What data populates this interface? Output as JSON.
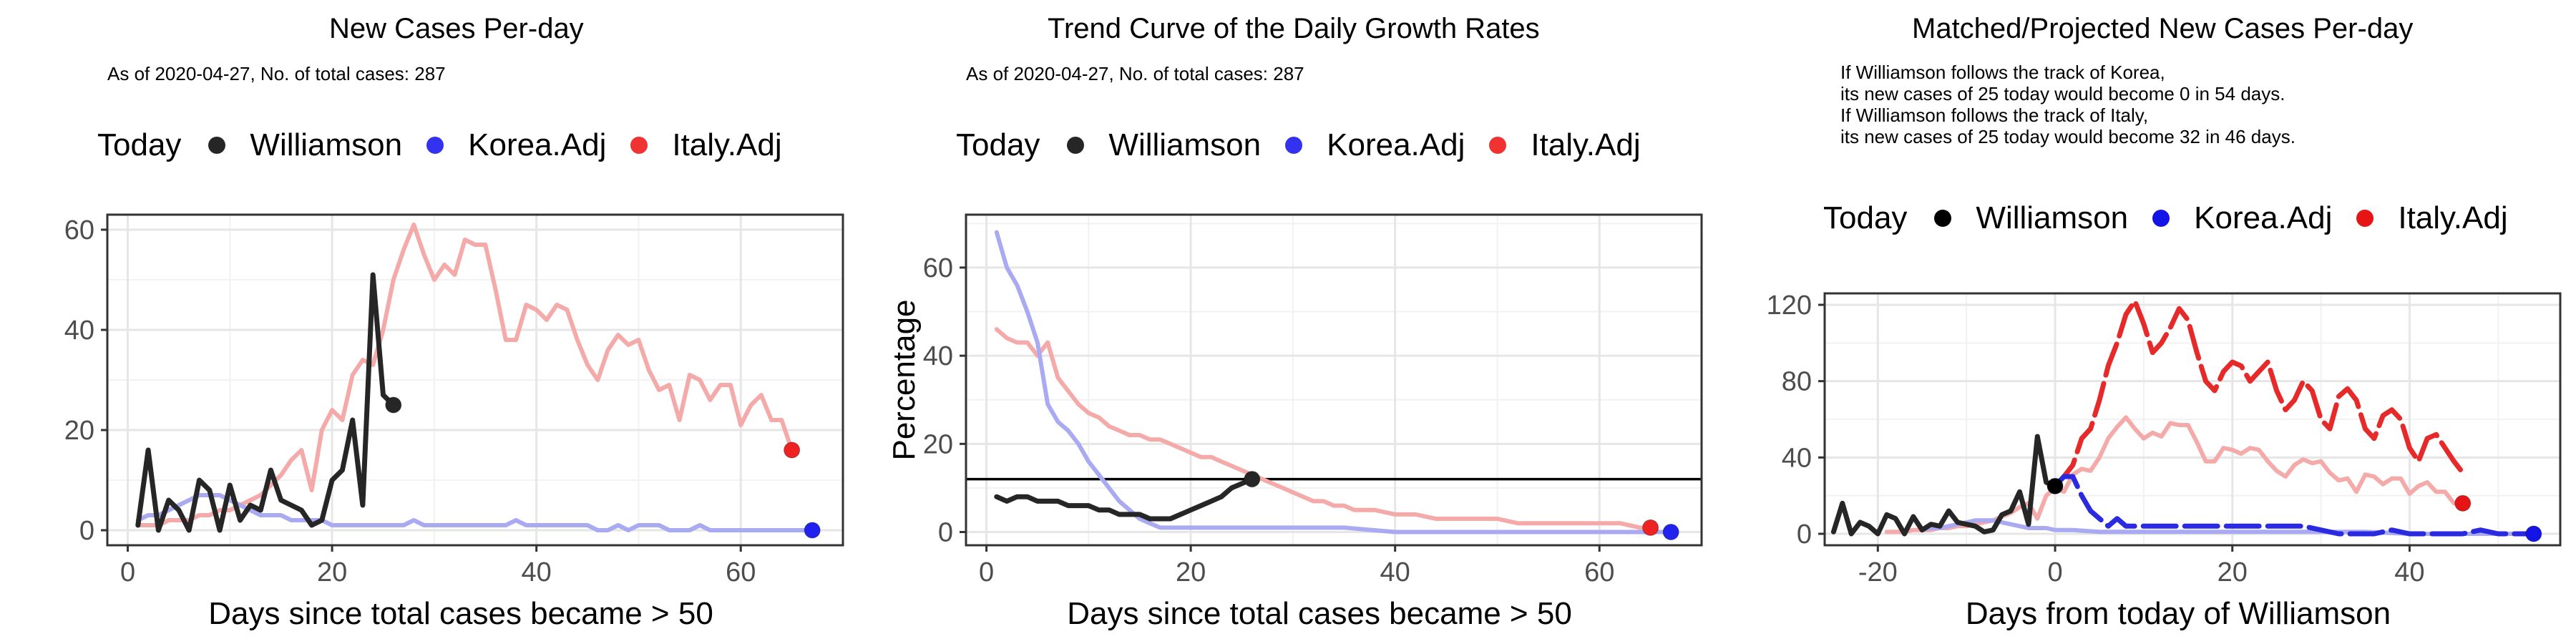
{
  "colors": {
    "today": "#000000",
    "williamson_line": "#262626",
    "korea_point": "#2222ee",
    "italy_point": "#ee2222",
    "korea_faded": "#aaaaf2",
    "italy_faded": "#f5aaaa",
    "korea_proj": "#2a2ae0",
    "italy_proj": "#e62a2a"
  },
  "legend": {
    "title": "Today",
    "items": [
      {
        "label": "Williamson",
        "color": "#262626"
      },
      {
        "label": "Korea.Adj",
        "color": "#3232f0"
      },
      {
        "label": "Italy.Adj",
        "color": "#f03232"
      }
    ]
  },
  "legend3": {
    "title": "Today",
    "items": [
      {
        "label": "Williamson",
        "color": "#000000"
      },
      {
        "label": "Korea.Adj",
        "color": "#1414e6"
      },
      {
        "label": "Italy.Adj",
        "color": "#e61414"
      }
    ]
  },
  "panel1": {
    "title": "New Cases Per-day",
    "subtitle": "As of 2020-04-27, No. of total cases: 287"
  },
  "panel2": {
    "title": "Trend Curve of the Daily Growth Rates",
    "subtitle": "As of 2020-04-27, No. of total cases: 287"
  },
  "panel3": {
    "title": "Matched/Projected New Cases Per-day",
    "subtitle_lines": [
      "If Williamson follows the track of Korea,",
      "its new cases of 25 today would become 0 in 54 days.",
      "If Williamson follows the track of Italy,",
      "its new cases of 25 today would become 32 in 46 days."
    ]
  },
  "chart_data": [
    {
      "type": "line",
      "title": "New Cases Per-day",
      "xlabel": "Days since total cases became > 50",
      "ylabel": "",
      "xlim": [
        -2,
        70
      ],
      "ylim": [
        -3,
        63
      ],
      "xticks": [
        0,
        20,
        40,
        60
      ],
      "yticks": [
        0,
        20,
        40,
        60
      ],
      "grid": true,
      "legend_position": "top",
      "series": [
        {
          "name": "Italy.Adj",
          "x": [
            1,
            2,
            3,
            4,
            5,
            6,
            7,
            8,
            9,
            10,
            11,
            12,
            13,
            14,
            15,
            16,
            17,
            18,
            19,
            20,
            21,
            22,
            23,
            24,
            25,
            26,
            27,
            28,
            29,
            30,
            31,
            32,
            33,
            34,
            35,
            36,
            37,
            38,
            39,
            40,
            41,
            42,
            43,
            44,
            45,
            46,
            47,
            48,
            49,
            50,
            51,
            52,
            53,
            54,
            55,
            56,
            57,
            58,
            59,
            60,
            61,
            62,
            63,
            64,
            65
          ],
          "y": [
            1,
            1,
            1,
            2,
            2,
            2,
            3,
            3,
            4,
            4,
            5,
            6,
            7,
            9,
            11,
            14,
            16,
            8,
            20,
            24,
            22,
            31,
            34,
            33,
            40,
            50,
            56,
            61,
            55,
            50,
            53,
            51,
            58,
            57,
            57,
            48,
            38,
            38,
            45,
            44,
            42,
            45,
            44,
            38,
            33,
            30,
            36,
            39,
            37,
            38,
            32,
            28,
            29,
            22,
            31,
            30,
            26,
            29,
            29,
            21,
            25,
            27,
            22,
            22,
            16
          ]
        },
        {
          "name": "Korea.Adj",
          "x": [
            1,
            2,
            3,
            4,
            5,
            6,
            7,
            8,
            9,
            10,
            11,
            12,
            13,
            14,
            15,
            16,
            17,
            18,
            19,
            20,
            21,
            22,
            23,
            24,
            25,
            26,
            27,
            28,
            29,
            30,
            31,
            32,
            33,
            34,
            35,
            36,
            37,
            38,
            39,
            40,
            41,
            42,
            43,
            44,
            45,
            46,
            47,
            48,
            49,
            50,
            51,
            52,
            53,
            54,
            55,
            56,
            57,
            58,
            59,
            60,
            61,
            62,
            63,
            64,
            65,
            66,
            67
          ],
          "y": [
            2,
            3,
            3,
            4,
            5,
            6,
            7,
            7,
            7,
            6,
            5,
            4,
            3,
            3,
            3,
            2,
            2,
            2,
            2,
            1,
            1,
            1,
            1,
            1,
            1,
            1,
            1,
            2,
            1,
            1,
            1,
            1,
            1,
            1,
            1,
            1,
            1,
            2,
            1,
            1,
            1,
            1,
            1,
            1,
            1,
            0,
            0,
            1,
            0,
            1,
            1,
            1,
            0,
            0,
            0,
            1,
            0,
            0,
            0,
            0,
            0,
            0,
            0,
            0,
            0,
            0,
            0
          ]
        },
        {
          "name": "Williamson",
          "x": [
            1,
            2,
            3,
            4,
            5,
            6,
            7,
            8,
            9,
            10,
            11,
            12,
            13,
            14,
            15,
            16,
            17,
            18,
            19,
            20,
            21,
            22,
            23,
            24,
            25,
            26
          ],
          "y": [
            1,
            16,
            0,
            6,
            4,
            0,
            10,
            8,
            0,
            9,
            2,
            5,
            4,
            12,
            6,
            5,
            4,
            1,
            2,
            10,
            12,
            22,
            5,
            51,
            27,
            25
          ]
        }
      ],
      "today_points": [
        {
          "name": "Williamson",
          "x": 26,
          "y": 25
        },
        {
          "name": "Korea.Adj",
          "x": 67,
          "y": 0
        },
        {
          "name": "Italy.Adj",
          "x": 65,
          "y": 16
        }
      ]
    },
    {
      "type": "line",
      "title": "Trend Curve of the Daily Growth Rates",
      "xlabel": "Days since total cases became > 50",
      "ylabel": "Percentage",
      "xlim": [
        -2,
        70
      ],
      "ylim": [
        -3,
        72
      ],
      "xticks": [
        0,
        20,
        40,
        60
      ],
      "yticks": [
        0,
        20,
        40,
        60
      ],
      "hline": 12,
      "grid": true,
      "legend_position": "top",
      "series": [
        {
          "name": "Italy.Adj",
          "x": [
            1,
            2,
            3,
            4,
            5,
            6,
            7,
            8,
            9,
            10,
            11,
            12,
            13,
            14,
            15,
            16,
            17,
            18,
            19,
            20,
            21,
            22,
            23,
            24,
            25,
            26,
            27,
            28,
            29,
            30,
            31,
            32,
            33,
            34,
            35,
            36,
            38,
            40,
            42,
            44,
            46,
            48,
            50,
            52,
            54,
            56,
            58,
            60,
            62,
            64,
            65
          ],
          "y": [
            46,
            44,
            43,
            43,
            40,
            43,
            35,
            32,
            29,
            27,
            26,
            24,
            23,
            22,
            22,
            21,
            21,
            20,
            19,
            18,
            17,
            17,
            16,
            15,
            14,
            13,
            12,
            11,
            10,
            9,
            8,
            7,
            7,
            6,
            6,
            5,
            5,
            4,
            4,
            3,
            3,
            3,
            3,
            2,
            2,
            2,
            2,
            2,
            2,
            1,
            1
          ]
        },
        {
          "name": "Korea.Adj",
          "x": [
            1,
            2,
            3,
            4,
            5,
            6,
            7,
            8,
            9,
            10,
            11,
            12,
            13,
            14,
            15,
            16,
            17,
            18,
            19,
            20,
            21,
            22,
            23,
            24,
            25,
            26,
            28,
            30,
            35,
            40,
            45,
            50,
            55,
            60,
            65,
            67
          ],
          "y": [
            68,
            60,
            56,
            50,
            43,
            29,
            25,
            23,
            20,
            16,
            13,
            10,
            7,
            5,
            3,
            2,
            1,
            1,
            1,
            1,
            1,
            1,
            1,
            1,
            1,
            1,
            1,
            1,
            1,
            0,
            0,
            0,
            0,
            0,
            0,
            0
          ]
        },
        {
          "name": "Williamson",
          "x": [
            1,
            2,
            3,
            4,
            5,
            6,
            7,
            8,
            9,
            10,
            11,
            12,
            13,
            14,
            15,
            16,
            17,
            18,
            19,
            20,
            21,
            22,
            23,
            24,
            25,
            26
          ],
          "y": [
            8,
            7,
            8,
            8,
            7,
            7,
            7,
            6,
            6,
            6,
            5,
            5,
            4,
            4,
            4,
            3,
            3,
            3,
            4,
            5,
            6,
            7,
            8,
            10,
            11,
            12
          ]
        }
      ],
      "today_points": [
        {
          "name": "Williamson",
          "x": 26,
          "y": 12
        },
        {
          "name": "Korea.Adj",
          "x": 67,
          "y": 0
        },
        {
          "name": "Italy.Adj",
          "x": 65,
          "y": 1
        }
      ]
    },
    {
      "type": "line",
      "title": "Matched/Projected New Cases Per-day",
      "xlabel": "Days from today of Williamson",
      "ylabel": "",
      "xlim": [
        -26,
        57
      ],
      "ylim": [
        -6,
        126
      ],
      "xticks": [
        -20,
        0,
        20,
        40
      ],
      "yticks": [
        0,
        40,
        80,
        120
      ],
      "grid": true,
      "legend_position": "top",
      "series": [
        {
          "name": "Italy.Adj (faded)",
          "x": [
            -19,
            -18,
            -17,
            -16,
            -15,
            -14,
            -13,
            -12,
            -11,
            -10,
            -9,
            -8,
            -7,
            -6,
            -5,
            -4,
            -3,
            -2,
            -1,
            0,
            1,
            2,
            3,
            4,
            5,
            6,
            7,
            8,
            9,
            10,
            11,
            12,
            13,
            14,
            15,
            16,
            17,
            18,
            19,
            20,
            21,
            22,
            23,
            24,
            25,
            26,
            27,
            28,
            29,
            30,
            31,
            32,
            33,
            34,
            35,
            36,
            37,
            38,
            39,
            40,
            41,
            42,
            43,
            44,
            45,
            46
          ],
          "y": [
            1,
            1,
            1,
            2,
            2,
            2,
            3,
            3,
            4,
            4,
            5,
            6,
            7,
            9,
            11,
            14,
            16,
            8,
            20,
            24,
            22,
            31,
            34,
            33,
            40,
            50,
            56,
            61,
            55,
            50,
            53,
            51,
            58,
            57,
            57,
            48,
            38,
            38,
            45,
            44,
            42,
            45,
            44,
            38,
            33,
            30,
            36,
            39,
            37,
            38,
            32,
            28,
            29,
            22,
            31,
            30,
            26,
            29,
            29,
            21,
            25,
            27,
            22,
            22,
            16,
            16
          ]
        },
        {
          "name": "Korea.Adj (faded)",
          "x": [
            -15,
            -14,
            -13,
            -12,
            -11,
            -10,
            -9,
            -8,
            -7,
            -6,
            -5,
            -4,
            -3,
            -2,
            -1,
            0,
            2,
            5,
            10,
            15,
            20,
            25,
            30,
            35,
            40,
            45,
            50,
            53
          ],
          "y": [
            2,
            3,
            3,
            4,
            5,
            6,
            7,
            7,
            7,
            6,
            5,
            4,
            3,
            3,
            3,
            2,
            2,
            1,
            1,
            1,
            1,
            1,
            1,
            1,
            0,
            0,
            0,
            0
          ]
        },
        {
          "name": "Italy.Adj",
          "x": [
            0,
            1,
            2,
            3,
            4,
            5,
            6,
            7,
            8,
            9,
            10,
            11,
            12,
            13,
            14,
            15,
            16,
            17,
            18,
            19,
            20,
            21,
            22,
            23,
            24,
            25,
            26,
            27,
            28,
            29,
            30,
            31,
            32,
            33,
            34,
            35,
            36,
            37,
            38,
            39,
            40,
            41,
            42,
            43,
            44,
            45,
            46
          ],
          "y": [
            25,
            30,
            36,
            50,
            55,
            70,
            88,
            100,
            115,
            122,
            110,
            95,
            100,
            108,
            118,
            112,
            95,
            80,
            75,
            85,
            90,
            88,
            80,
            85,
            90,
            75,
            65,
            70,
            80,
            75,
            60,
            55,
            72,
            76,
            70,
            55,
            50,
            62,
            65,
            60,
            45,
            38,
            50,
            52,
            45,
            38,
            32
          ]
        },
        {
          "name": "Korea.Adj",
          "x": [
            0,
            1,
            2,
            3,
            4,
            5,
            6,
            7,
            8,
            10,
            12,
            14,
            16,
            18,
            20,
            22,
            24,
            26,
            28,
            30,
            32,
            34,
            36,
            38,
            40,
            42,
            44,
            46,
            48,
            50,
            52,
            54
          ],
          "y": [
            25,
            30,
            30,
            20,
            12,
            8,
            4,
            8,
            4,
            4,
            4,
            4,
            4,
            4,
            4,
            4,
            4,
            4,
            4,
            2,
            0,
            0,
            0,
            2,
            0,
            0,
            0,
            0,
            2,
            0,
            0,
            0
          ]
        },
        {
          "name": "Williamson",
          "x": [
            -25,
            -24,
            -23,
            -22,
            -21,
            -20,
            -19,
            -18,
            -17,
            -16,
            -15,
            -14,
            -13,
            -12,
            -11,
            -10,
            -9,
            -8,
            -7,
            -6,
            -5,
            -4,
            -3,
            -2,
            -1,
            0
          ],
          "y": [
            1,
            16,
            0,
            6,
            4,
            0,
            10,
            8,
            0,
            9,
            2,
            5,
            4,
            12,
            6,
            5,
            4,
            1,
            2,
            10,
            12,
            22,
            5,
            51,
            27,
            25
          ]
        }
      ],
      "today_points": [
        {
          "name": "Williamson",
          "x": 0,
          "y": 25
        },
        {
          "name": "Korea.Adj",
          "x": 54,
          "y": 0
        },
        {
          "name": "Italy.Adj",
          "x": 46,
          "y": 16
        }
      ]
    }
  ]
}
